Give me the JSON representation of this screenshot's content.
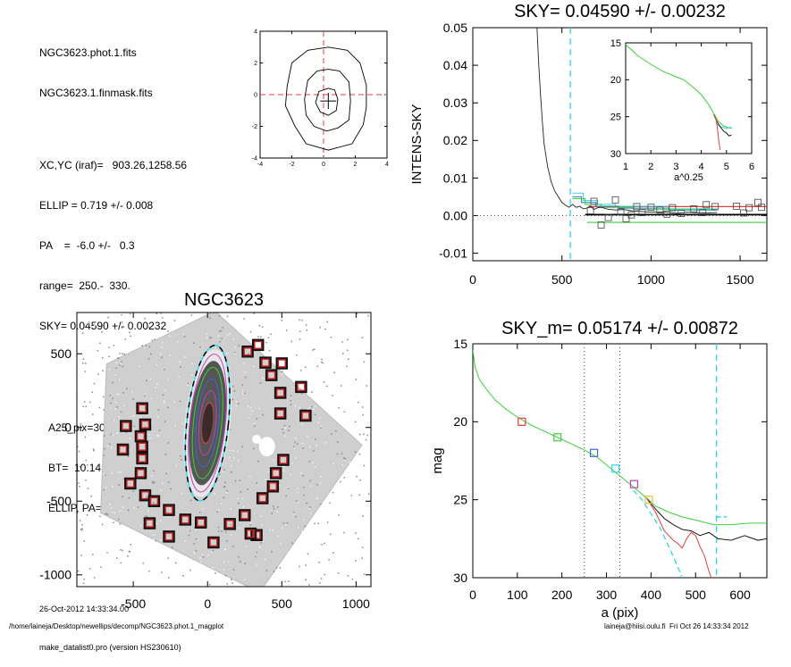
{
  "info": {
    "lines_a": [
      "NGC3623.phot.1.fits",
      "NGC3623.1.finmask.fits"
    ],
    "lines_b": [
      "XC,YC (iraf)=   903.26,1258.56",
      "ELLIP = 0.719 +/- 0.008",
      "PA    =  -6.0 +/-   0.3",
      "range=  250.-  330.",
      "SKY= 0.04590 +/- 0.00232"
    ],
    "lines_c": [
      "A25_pix=305.5   T= 1.0  B",
      "BT=  10.14   MABS=-20.94",
      "ELLIP, PA= 0.742  173.0"
    ],
    "date": "26-Oct-2012 14:33:34.00",
    "program": "make_datalist0.pro (version HS230610)"
  },
  "footer": {
    "path": "/home/laineja/Desktop/newellips/decomp/NGC3623.phot.1_magplot",
    "user": "laineja@hiisi.oulu.fi  Fri Oct 26 14:33:34 2012"
  },
  "colors": {
    "red": "#e0403c",
    "cyan": "#30d8e8",
    "green": "#3ccf3c",
    "blue": "#3a6ec8",
    "magenta": "#c040c0",
    "yellow": "#d8c83a",
    "grey": "#666666"
  },
  "chart_data": [
    {
      "type": "line",
      "id": "contour",
      "title": "",
      "xlim": [
        -4,
        4
      ],
      "ylim": [
        -4,
        4
      ],
      "xticks": [
        -4,
        -2,
        0,
        2,
        4
      ],
      "yticks": [
        -4,
        -2,
        0,
        2,
        4
      ],
      "center": [
        0.3,
        -0.4
      ],
      "contours": [
        [
          [
            0.3,
            3.0
          ],
          [
            1.5,
            2.8
          ],
          [
            2.3,
            2.0
          ],
          [
            2.7,
            0.6
          ],
          [
            2.7,
            -0.8
          ],
          [
            2.5,
            -1.9
          ],
          [
            1.8,
            -3.1
          ],
          [
            0.3,
            -3.5
          ],
          [
            -1.1,
            -3.1
          ],
          [
            -1.8,
            -2.0
          ],
          [
            -2.4,
            -0.7
          ],
          [
            -2.3,
            0.5
          ],
          [
            -2.0,
            2.0
          ],
          [
            -1.0,
            2.8
          ],
          [
            0.3,
            3.0
          ]
        ],
        [
          [
            0.3,
            1.6
          ],
          [
            1.0,
            1.5
          ],
          [
            1.6,
            0.8
          ],
          [
            1.7,
            -0.4
          ],
          [
            1.6,
            -1.6
          ],
          [
            0.9,
            -2.1
          ],
          [
            0.2,
            -2.3
          ],
          [
            -0.6,
            -2.0
          ],
          [
            -1.1,
            -1.3
          ],
          [
            -1.2,
            -0.3
          ],
          [
            -1.0,
            0.9
          ],
          [
            -0.4,
            1.5
          ],
          [
            0.3,
            1.6
          ]
        ],
        [
          [
            0.3,
            0.4
          ],
          [
            0.7,
            0.3
          ],
          [
            0.9,
            -0.3
          ],
          [
            0.8,
            -1.0
          ],
          [
            0.3,
            -1.3
          ],
          [
            -0.2,
            -1.1
          ],
          [
            -0.5,
            -0.5
          ],
          [
            -0.3,
            0.2
          ],
          [
            0.3,
            0.4
          ]
        ]
      ]
    },
    {
      "type": "line",
      "id": "sky",
      "title": "SKY= 0.04590 +/- 0.00232",
      "xlabel": "",
      "ylabel": "INTENS-SKY",
      "xlim": [
        0,
        1650
      ],
      "ylim": [
        -0.012,
        0.05
      ],
      "xticks": [
        0,
        500,
        1000,
        1500
      ],
      "yticks": [
        -0.01,
        0.0,
        0.01,
        0.02,
        0.03,
        0.04,
        0.05
      ],
      "yticklabels": [
        "-0.01",
        "0.00",
        "0.01",
        "0.02",
        "0.03",
        "0.04",
        "0.05"
      ],
      "profile": [
        [
          360,
          0.05
        ],
        [
          370,
          0.04
        ],
        [
          380,
          0.032
        ],
        [
          390,
          0.025
        ],
        [
          400,
          0.019
        ],
        [
          420,
          0.013
        ],
        [
          440,
          0.009
        ],
        [
          460,
          0.0065
        ],
        [
          480,
          0.005
        ],
        [
          500,
          0.0035
        ],
        [
          520,
          0.0028
        ],
        [
          540,
          0.0022
        ],
        [
          560,
          0.003
        ],
        [
          580,
          0.0022
        ],
        [
          600,
          0.0025
        ],
        [
          620,
          0.0018
        ],
        [
          640,
          0.002
        ],
        [
          660,
          0.0026
        ],
        [
          680,
          0.0016
        ],
        [
          700,
          0.0021
        ],
        [
          720,
          0.0022
        ],
        [
          760,
          0.0017
        ],
        [
          800,
          0.0015
        ],
        [
          850,
          0.0016
        ],
        [
          900,
          0.0012
        ],
        [
          950,
          0.0011
        ],
        [
          1000,
          0.0009
        ],
        [
          1050,
          0.001
        ],
        [
          1100,
          0.0008
        ],
        [
          1150,
          0.0006
        ],
        [
          1200,
          0.0009
        ],
        [
          1300,
          0.0007
        ],
        [
          1370,
          0.0008
        ]
      ],
      "vlines": [
        547
      ],
      "hlines": [
        {
          "y": 0.0,
          "style": "dotted"
        }
      ],
      "hsegments": [
        {
          "x0": 630,
          "x1": 1650,
          "y": 0.00026,
          "color": "black"
        },
        {
          "x0": 650,
          "x1": 1650,
          "y": 0.0024,
          "color": "red"
        },
        {
          "x0": 640,
          "x1": 1650,
          "y": -0.0018,
          "color": "green"
        }
      ],
      "steps": [
        {
          "color": "cyan",
          "points": [
            [
              560,
              0.006
            ],
            [
              620,
              0.006
            ],
            [
              620,
              0.004
            ],
            [
              700,
              0.004
            ],
            [
              700,
              0.003
            ],
            [
              800,
              0.003
            ],
            [
              800,
              0.0025
            ],
            [
              1100,
              0.0025
            ],
            [
              1100,
              0.0018
            ],
            [
              1370,
              0.0018
            ]
          ]
        },
        {
          "color": "blue",
          "points": [
            [
              560,
              0.005
            ],
            [
              610,
              0.005
            ],
            [
              610,
              0.0035
            ],
            [
              690,
              0.0035
            ],
            [
              690,
              0.0025
            ],
            [
              820,
              0.0025
            ],
            [
              820,
              0.002
            ],
            [
              1100,
              0.002
            ],
            [
              1100,
              0.0015
            ],
            [
              1370,
              0.0015
            ]
          ]
        },
        {
          "color": "green",
          "points": [
            [
              560,
              0.0045
            ],
            [
              630,
              0.0045
            ],
            [
              630,
              0.003
            ],
            [
              720,
              0.003
            ],
            [
              720,
              0.0022
            ],
            [
              900,
              0.0022
            ],
            [
              900,
              0.0016
            ],
            [
              1370,
              0.0016
            ]
          ]
        }
      ],
      "squares": [
        [
          660,
          0.0013
        ],
        [
          680,
          0.0038
        ],
        [
          720,
          -0.0025
        ],
        [
          760,
          -0.0005
        ],
        [
          800,
          0.0042
        ],
        [
          830,
          0.001
        ],
        [
          860,
          -0.0008
        ],
        [
          890,
          0.0002
        ],
        [
          920,
          0.0024
        ],
        [
          950,
          0.0008
        ],
        [
          1000,
          0.0022
        ],
        [
          1050,
          0.0015
        ],
        [
          1090,
          0.0004
        ],
        [
          1120,
          0.0021
        ],
        [
          1170,
          0.0006
        ],
        [
          1240,
          0.0018
        ],
        [
          1290,
          0.0008
        ],
        [
          1310,
          0.0029
        ],
        [
          1360,
          0.0024
        ],
        [
          1480,
          0.0025
        ],
        [
          1520,
          0.0007
        ],
        [
          1550,
          0.0021
        ],
        [
          1600,
          0.0035
        ],
        [
          1620,
          0.0022
        ]
      ],
      "inset": {
        "xlabel": "a^0.25",
        "xlim": [
          1,
          6
        ],
        "ylim": [
          30,
          15
        ],
        "xticks": [
          1,
          2,
          3,
          4,
          5,
          6
        ],
        "yticks": [
          15,
          20,
          25,
          30
        ],
        "green": [
          [
            1,
            15.2
          ],
          [
            1.5,
            16.8
          ],
          [
            2,
            17.9
          ],
          [
            2.5,
            18.9
          ],
          [
            3,
            19.6
          ],
          [
            3.3,
            20.0
          ],
          [
            3.6,
            20.8
          ],
          [
            4.0,
            22.0
          ],
          [
            4.3,
            23.4
          ],
          [
            4.5,
            24.6
          ],
          [
            4.7,
            25.7
          ],
          [
            4.9,
            26.3
          ],
          [
            5.2,
            26.6
          ]
        ],
        "black": [
          [
            4.5,
            24.7
          ],
          [
            4.6,
            25.5
          ],
          [
            4.7,
            26.1
          ],
          [
            4.8,
            26.6
          ],
          [
            4.9,
            27.0
          ],
          [
            5.0,
            27.2
          ],
          [
            5.1,
            27.6
          ],
          [
            5.2,
            27.5
          ]
        ],
        "red": [
          [
            4.5,
            24.7
          ],
          [
            4.6,
            25.6
          ],
          [
            4.65,
            26.8
          ],
          [
            4.7,
            28.4
          ],
          [
            4.75,
            29.5
          ]
        ],
        "cyan": [
          [
            4.6,
            26.0
          ],
          [
            4.8,
            26.4
          ],
          [
            5.0,
            26.6
          ],
          [
            5.2,
            26.4
          ]
        ]
      }
    },
    {
      "type": "scatter",
      "id": "image",
      "title": "NGC3623",
      "xlim": [
        -880,
        1100
      ],
      "ylim": [
        -1080,
        780
      ],
      "xticks": [
        -500,
        0,
        500,
        1000
      ],
      "yticks": [
        -1000,
        -500,
        0,
        500
      ],
      "yticklabels": [
        "-1000",
        "-500",
        "0",
        "500"
      ],
      "ellipse": {
        "cx": 0,
        "cy": 30,
        "a": 530,
        "b": 140,
        "pa_deg": -6
      },
      "isophotes": [
        {
          "a": 470,
          "b": 120,
          "color": "magenta"
        },
        {
          "a": 380,
          "b": 95,
          "color": "green"
        },
        {
          "a": 300,
          "b": 75,
          "color": "blue"
        },
        {
          "a": 220,
          "b": 55,
          "color": "magenta"
        },
        {
          "a": 140,
          "b": 35,
          "color": "red"
        }
      ],
      "squares": [
        [
          270,
          515
        ],
        [
          340,
          560
        ],
        [
          390,
          440
        ],
        [
          430,
          355
        ],
        [
          500,
          435
        ],
        [
          490,
          235
        ],
        [
          630,
          275
        ],
        [
          490,
          95
        ],
        [
          660,
          80
        ],
        [
          -440,
          130
        ],
        [
          -420,
          20
        ],
        [
          -550,
          10
        ],
        [
          -450,
          -60
        ],
        [
          -440,
          -130
        ],
        [
          -570,
          -150
        ],
        [
          -440,
          -210
        ],
        [
          -450,
          -310
        ],
        [
          -520,
          -380
        ],
        [
          -420,
          -460
        ],
        [
          -360,
          -500
        ],
        [
          -260,
          -560
        ],
        [
          -150,
          -625
        ],
        [
          -45,
          -645
        ],
        [
          -390,
          -650
        ],
        [
          -260,
          -740
        ],
        [
          40,
          -780
        ],
        [
          150,
          -655
        ],
        [
          250,
          -595
        ],
        [
          330,
          -730
        ],
        [
          370,
          -480
        ],
        [
          440,
          -400
        ],
        [
          460,
          -310
        ],
        [
          510,
          -220
        ],
        [
          290,
          -720
        ]
      ]
    },
    {
      "type": "line",
      "id": "mag",
      "title": "SKY_m=  0.05174 +/- 0.00872",
      "xlabel": "a (pix)",
      "ylabel": "mag",
      "xlim": [
        0,
        660
      ],
      "ylim": [
        30,
        15
      ],
      "xticks": [
        0,
        100,
        200,
        300,
        400,
        500,
        600
      ],
      "yticks": [
        15,
        20,
        25,
        30
      ],
      "dotted_vlines": [
        250,
        330
      ],
      "cyan_vline": 547,
      "green": [
        [
          0,
          15.4
        ],
        [
          5,
          16.5
        ],
        [
          15,
          17.3
        ],
        [
          30,
          17.9
        ],
        [
          50,
          18.6
        ],
        [
          75,
          19.2
        ],
        [
          100,
          19.7
        ],
        [
          130,
          20.2
        ],
        [
          160,
          20.6
        ],
        [
          190,
          21.0
        ],
        [
          220,
          21.4
        ],
        [
          250,
          21.8
        ],
        [
          280,
          22.3
        ],
        [
          310,
          23.0
        ],
        [
          340,
          23.7
        ],
        [
          370,
          24.4
        ],
        [
          390,
          24.9
        ],
        [
          410,
          25.4
        ],
        [
          440,
          25.8
        ],
        [
          470,
          26.1
        ],
        [
          500,
          26.3
        ],
        [
          540,
          26.6
        ],
        [
          580,
          26.6
        ],
        [
          620,
          26.5
        ],
        [
          660,
          26.5
        ]
      ],
      "black": [
        [
          390,
          24.9
        ],
        [
          410,
          25.6
        ],
        [
          430,
          26.2
        ],
        [
          450,
          26.6
        ],
        [
          470,
          26.9
        ],
        [
          490,
          27.0
        ],
        [
          510,
          27.3
        ],
        [
          530,
          27.1
        ],
        [
          550,
          27.5
        ],
        [
          580,
          27.6
        ],
        [
          610,
          27.3
        ],
        [
          640,
          27.6
        ],
        [
          660,
          27.5
        ]
      ],
      "red": [
        [
          390,
          24.9
        ],
        [
          410,
          25.8
        ],
        [
          420,
          26.4
        ],
        [
          430,
          27.0
        ],
        [
          440,
          27.3
        ],
        [
          450,
          27.6
        ],
        [
          460,
          27.8
        ],
        [
          470,
          28.1
        ],
        [
          480,
          27.5
        ],
        [
          490,
          27.1
        ],
        [
          500,
          27.3
        ],
        [
          510,
          28.0
        ],
        [
          520,
          28.6
        ],
        [
          530,
          29.6
        ],
        [
          535,
          30.0
        ]
      ],
      "cyan_dashed": [
        [
          360,
          24.4
        ],
        [
          380,
          25.0
        ],
        [
          400,
          25.9
        ],
        [
          420,
          26.8
        ],
        [
          440,
          28.0
        ],
        [
          460,
          29.3
        ],
        [
          470,
          30.0
        ]
      ],
      "cyan_short": [
        [
          545,
          26.1
        ],
        [
          570,
          26.1
        ]
      ],
      "squares": [
        {
          "x": 110,
          "y": 20.0,
          "color": "red"
        },
        {
          "x": 190,
          "y": 21.0,
          "color": "green"
        },
        {
          "x": 272,
          "y": 22.0,
          "color": "blue"
        },
        {
          "x": 320,
          "y": 23.0,
          "color": "cyan"
        },
        {
          "x": 362,
          "y": 24.0,
          "color": "magenta"
        },
        {
          "x": 395,
          "y": 25.0,
          "color": "yellow"
        }
      ]
    }
  ]
}
